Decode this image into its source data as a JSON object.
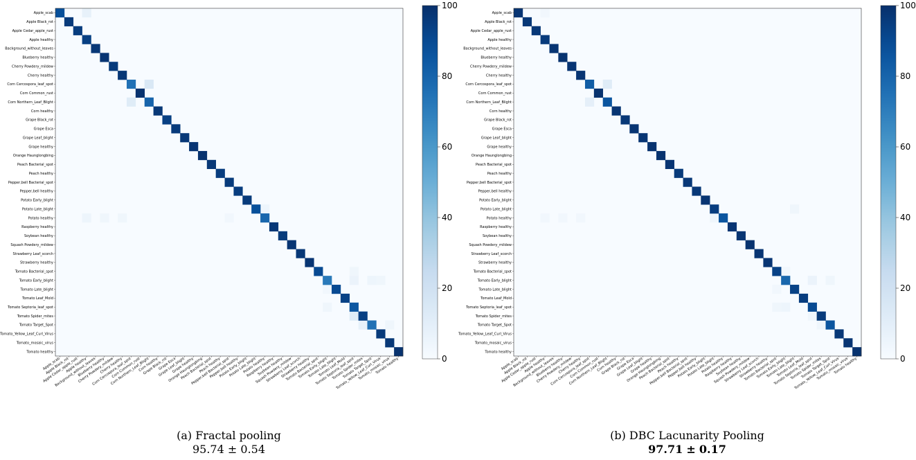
{
  "classes": [
    "Apple_scab",
    "Apple Black_rot",
    "Apple Cedar_apple_rust",
    "Apple healthy",
    "Background_without_leaves",
    "Blueberry healthy",
    "Cherry Powdery_mildew",
    "Cherry healthy",
    "Corn Cercospora_leaf_spot",
    "Corn Common_rust",
    "Corn Northern_Leaf_Blight",
    "Corn healthy",
    "Grape Black_rot",
    "Grape Esca",
    "Grape Leaf_blight",
    "Grape healthy",
    "Orange Haunglongbing",
    "Peach Bacterial_spot",
    "Peach healthy",
    "Pepper,bell Bacterial_spot",
    "Pepper,bell healthy",
    "Potato Early_blight",
    "Potato Late_blight",
    "Potato healthy",
    "Raspberry healthy",
    "Soybean healthy",
    "Squash Powdery_mildew",
    "Strawberry Leaf_scorch",
    "Strawberry healthy",
    "Tomato Bacterial_spot",
    "Tomato Early_blight",
    "Tomato Late_blight",
    "Tomato Leaf_Mold",
    "Tomato Septoria_leaf_spot",
    "Tomato Spider_mites",
    "Tomato Target_Spot",
    "Tomato_Yellow_Leaf_Curl_Virus",
    "Tomato_mosaic_virus",
    "Tomato healthy"
  ],
  "colorbar": {
    "min": 0,
    "max": 100,
    "ticks": [
      "0",
      "20",
      "40",
      "60",
      "80",
      "100"
    ]
  },
  "chart_data": [
    {
      "type": "heatmap",
      "title": "",
      "caption_line1": "(a) Fractal pooling",
      "caption_line2_value": "95.74",
      "caption_line2_pm": "±",
      "caption_line2_err": "0.54",
      "caption_bold": false,
      "value_range": [
        0,
        100
      ],
      "diagonal": [
        88,
        96,
        95,
        94,
        97,
        98,
        96,
        97,
        75,
        99,
        80,
        97,
        94,
        96,
        97,
        98,
        99,
        97,
        95,
        96,
        95,
        96,
        88,
        79,
        97,
        96,
        98,
        97,
        98,
        90,
        72,
        90,
        93,
        85,
        94,
        75,
        96,
        97,
        99
      ],
      "off_diagonal": [
        {
          "row": 8,
          "col": 10,
          "value": 15
        },
        {
          "row": 10,
          "col": 8,
          "value": 12
        },
        {
          "row": 0,
          "col": 3,
          "value": 8
        },
        {
          "row": 23,
          "col": 3,
          "value": 5
        },
        {
          "row": 23,
          "col": 5,
          "value": 4
        },
        {
          "row": 23,
          "col": 7,
          "value": 4
        },
        {
          "row": 23,
          "col": 19,
          "value": 3
        },
        {
          "row": 22,
          "col": 23,
          "value": 5
        },
        {
          "row": 30,
          "col": 33,
          "value": 6
        },
        {
          "row": 30,
          "col": 35,
          "value": 5
        },
        {
          "row": 30,
          "col": 36,
          "value": 4
        },
        {
          "row": 33,
          "col": 30,
          "value": 4
        },
        {
          "row": 34,
          "col": 33,
          "value": 12
        },
        {
          "row": 35,
          "col": 34,
          "value": 8
        },
        {
          "row": 35,
          "col": 37,
          "value": 4
        },
        {
          "row": 29,
          "col": 33,
          "value": 4
        },
        {
          "row": 31,
          "col": 30,
          "value": 3
        }
      ]
    },
    {
      "type": "heatmap",
      "title": "",
      "caption_line1": "(b) DBC Lacunarity Pooling",
      "caption_line2_value": "97.71",
      "caption_line2_pm": "±",
      "caption_line2_err": "0.17",
      "caption_bold": true,
      "value_range": [
        0,
        100
      ],
      "diagonal": [
        98,
        97,
        97,
        96,
        98,
        99,
        98,
        98,
        83,
        99,
        86,
        98,
        97,
        98,
        98,
        99,
        99,
        98,
        96,
        97,
        97,
        98,
        95,
        86,
        98,
        98,
        99,
        98,
        98,
        93,
        79,
        93,
        95,
        90,
        96,
        86,
        97,
        98,
        99
      ],
      "off_diagonal": [
        {
          "row": 8,
          "col": 10,
          "value": 12
        },
        {
          "row": 10,
          "col": 8,
          "value": 9
        },
        {
          "row": 0,
          "col": 3,
          "value": 3
        },
        {
          "row": 23,
          "col": 3,
          "value": 3
        },
        {
          "row": 23,
          "col": 5,
          "value": 3
        },
        {
          "row": 23,
          "col": 7,
          "value": 3
        },
        {
          "row": 23,
          "col": 22,
          "value": 4
        },
        {
          "row": 22,
          "col": 31,
          "value": 4
        },
        {
          "row": 30,
          "col": 33,
          "value": 6
        },
        {
          "row": 30,
          "col": 35,
          "value": 4
        },
        {
          "row": 33,
          "col": 30,
          "value": 5
        },
        {
          "row": 33,
          "col": 29,
          "value": 4
        },
        {
          "row": 34,
          "col": 33,
          "value": 4
        },
        {
          "row": 35,
          "col": 34,
          "value": 4
        },
        {
          "row": 29,
          "col": 30,
          "value": 3
        },
        {
          "row": 31,
          "col": 29,
          "value": 3
        }
      ]
    }
  ]
}
